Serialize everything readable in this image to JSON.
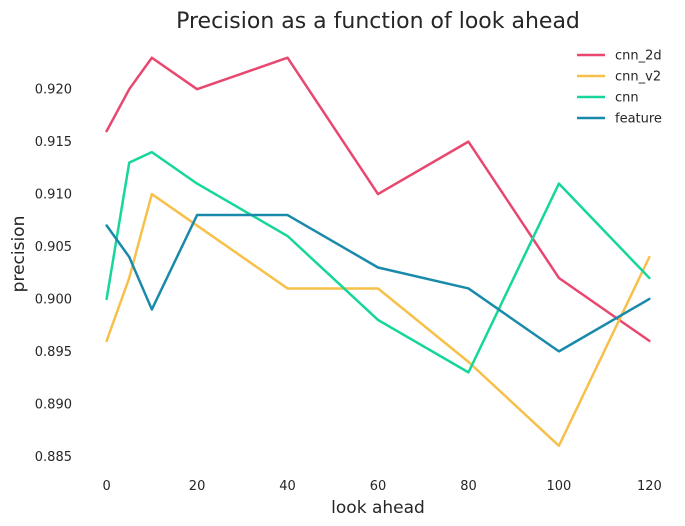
{
  "chart_data": {
    "type": "line",
    "title": "Precision as a function of look ahead",
    "xlabel": "look ahead",
    "ylabel": "precision",
    "x": [
      0,
      5,
      10,
      20,
      40,
      60,
      80,
      100,
      120
    ],
    "xlim": [
      -5,
      125
    ],
    "ylim": [
      0.8835,
      0.9245
    ],
    "xticks": [
      0,
      20,
      40,
      60,
      80,
      100,
      120
    ],
    "yticks": [
      0.885,
      0.89,
      0.895,
      0.9,
      0.905,
      0.91,
      0.915,
      0.92
    ],
    "ytick_labels": [
      "0.885",
      "0.890",
      "0.895",
      "0.900",
      "0.905",
      "0.910",
      "0.915",
      "0.920"
    ],
    "grid": false,
    "legend_position": "top-right",
    "series": [
      {
        "name": "cnn_2d",
        "color": "#e8476f",
        "values": [
          0.916,
          0.92,
          0.923,
          0.92,
          0.923,
          0.91,
          0.915,
          0.902,
          0.896
        ]
      },
      {
        "name": "cnn_v2",
        "color": "#f7c04a",
        "values": [
          0.896,
          0.902,
          0.91,
          0.907,
          0.901,
          0.901,
          0.894,
          0.886,
          0.904
        ]
      },
      {
        "name": "cnn",
        "color": "#16d69b",
        "values": [
          0.9,
          0.913,
          0.914,
          0.911,
          0.906,
          0.898,
          0.893,
          0.911,
          0.902
        ]
      },
      {
        "name": "feature",
        "color": "#1a8aab",
        "values": [
          0.907,
          0.904,
          0.899,
          0.908,
          0.908,
          0.903,
          0.901,
          0.895,
          0.9
        ]
      }
    ]
  }
}
